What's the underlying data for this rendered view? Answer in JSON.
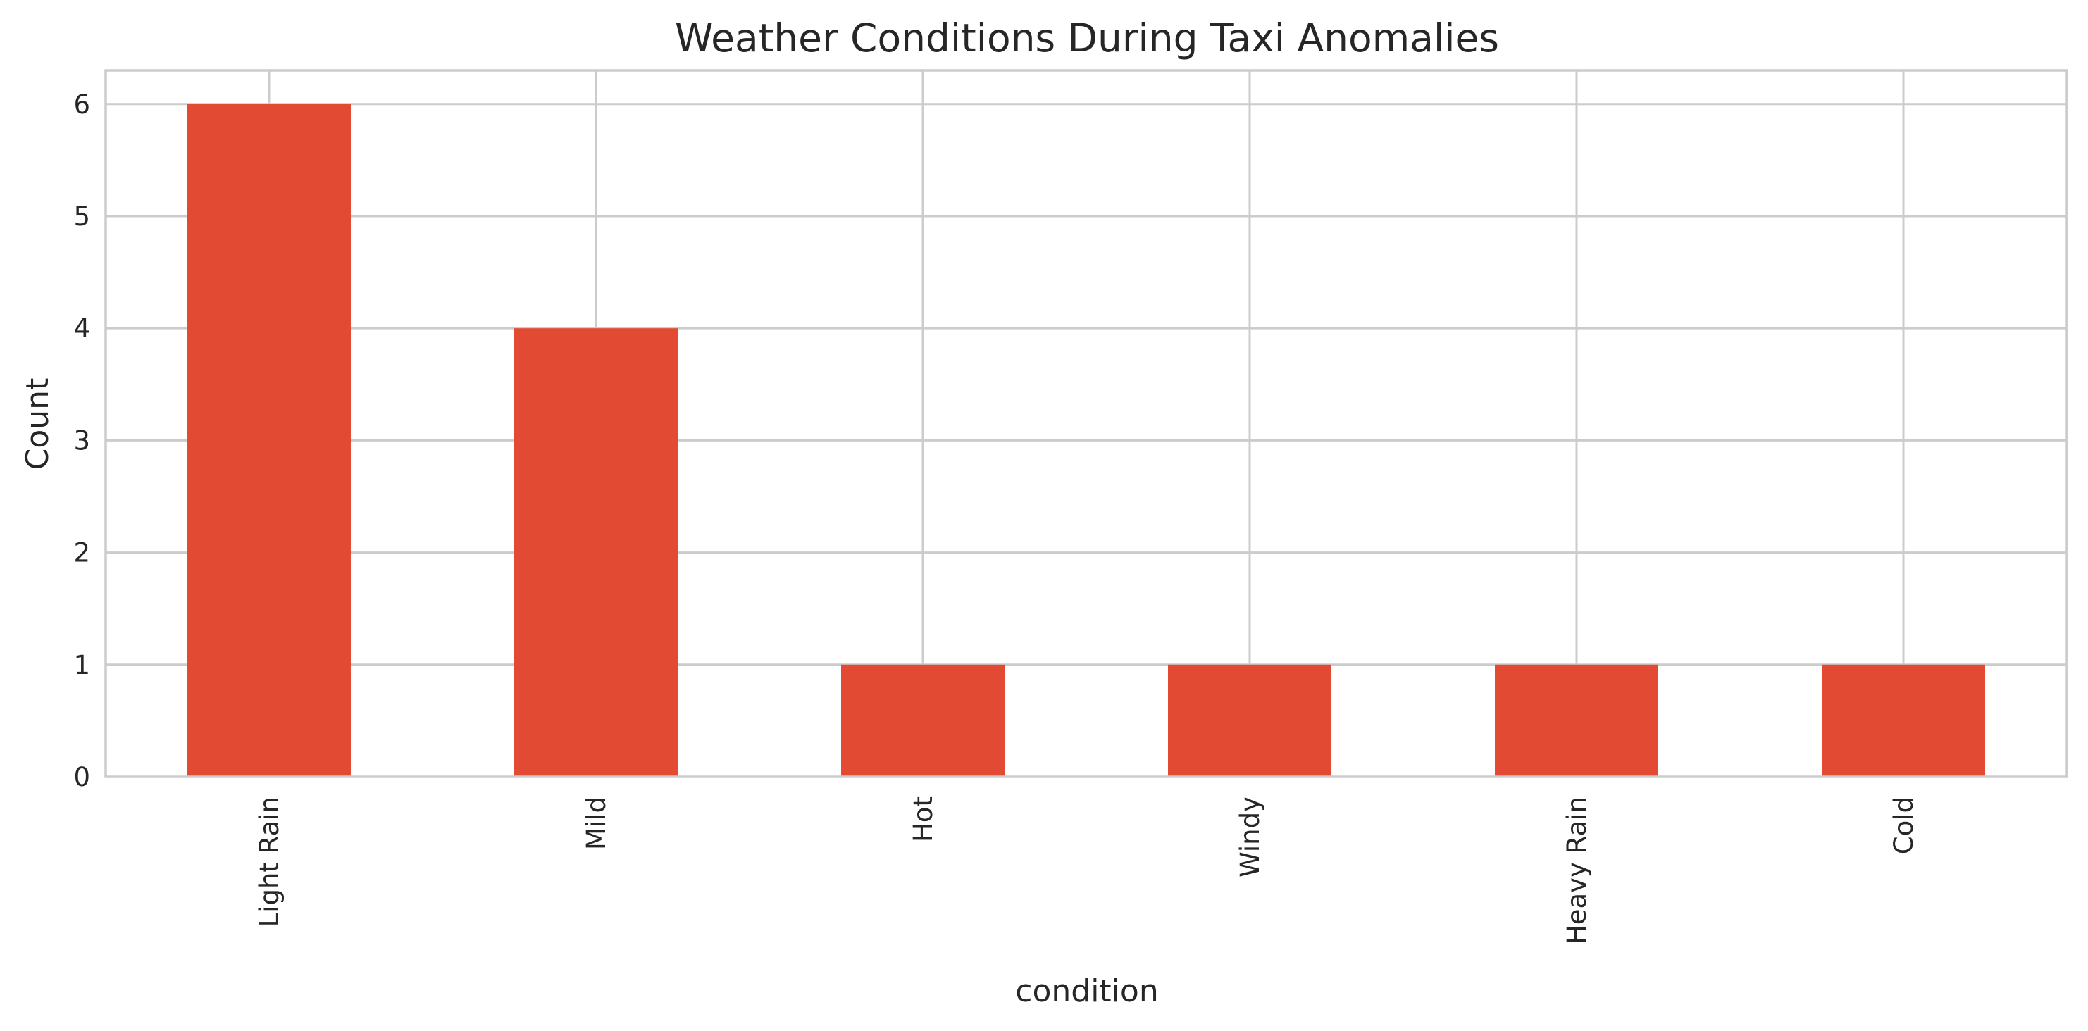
{
  "chart_data": {
    "type": "bar",
    "title": "Weather Conditions During Taxi Anomalies",
    "xlabel": "condition",
    "ylabel": "Count",
    "categories": [
      "Light Rain",
      "Mild",
      "Hot",
      "Windy",
      "Heavy Rain",
      "Cold"
    ],
    "values": [
      6,
      4,
      1,
      1,
      1,
      1
    ],
    "ylim": [
      0,
      6.3
    ],
    "yticks": [
      0,
      1,
      2,
      3,
      4,
      5,
      6
    ],
    "grid": true,
    "legend": "none",
    "bar_color": "#e24a33",
    "grid_color": "#cccccc",
    "text_color": "#262626"
  }
}
